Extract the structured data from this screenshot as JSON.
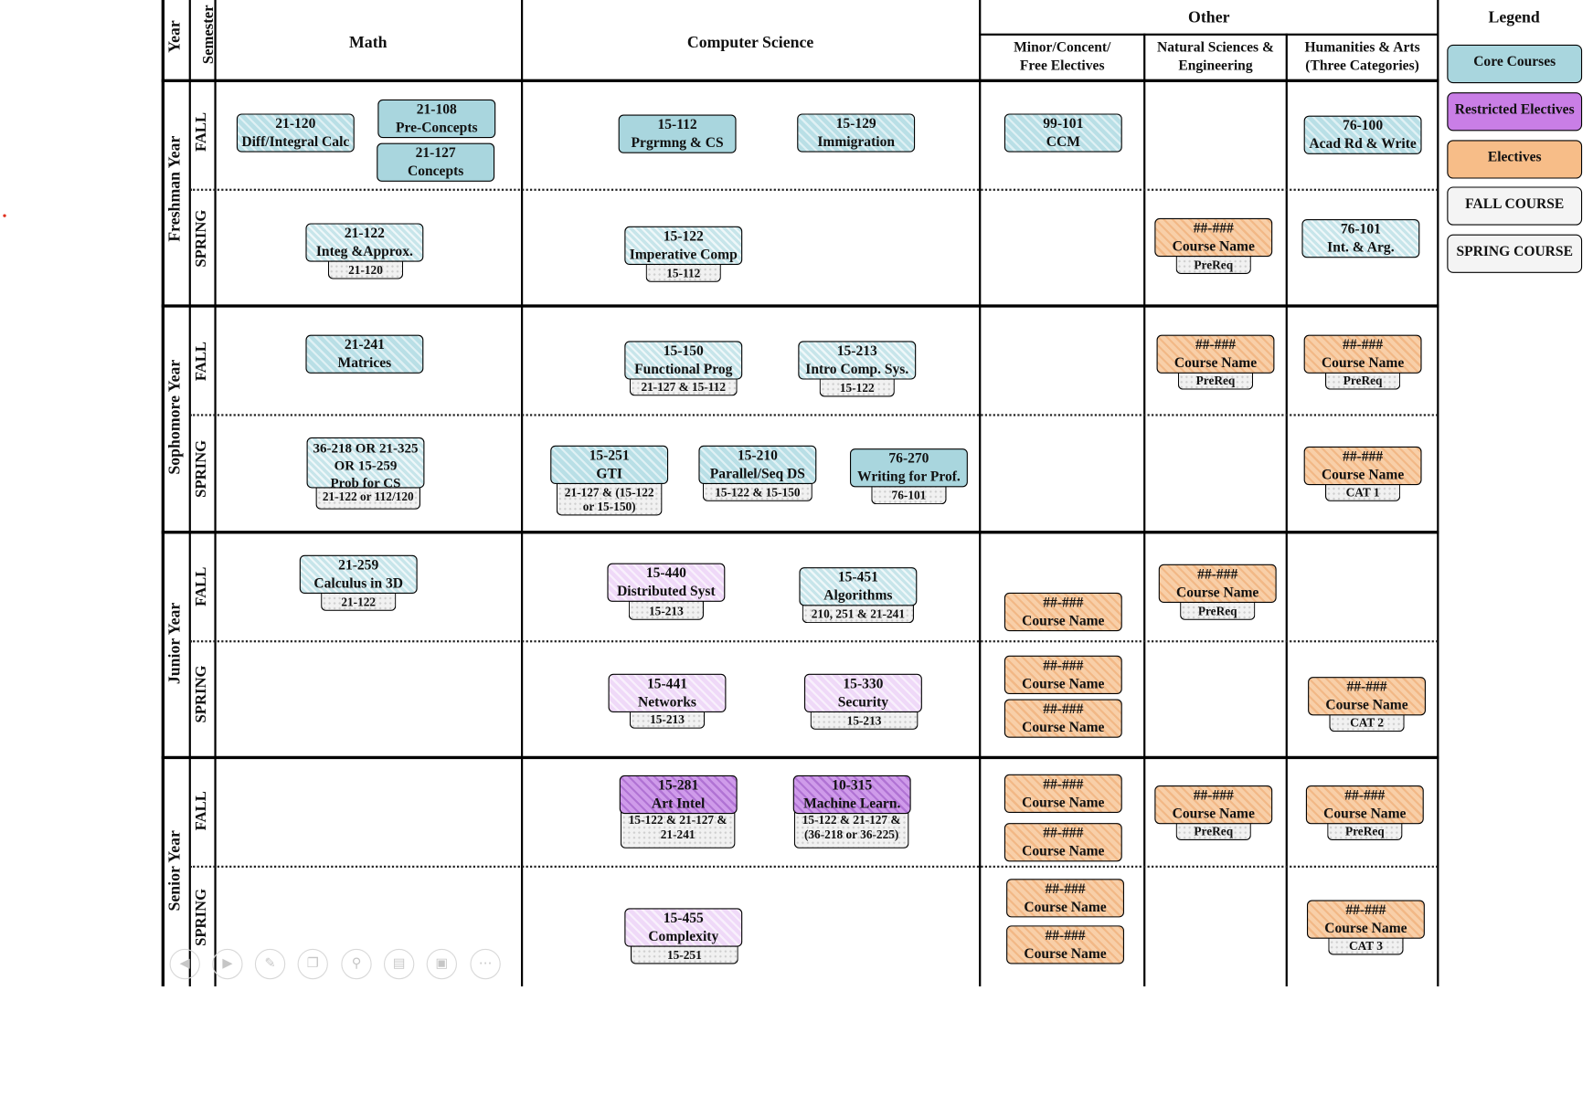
{
  "headers": {
    "year": "Year",
    "semester": "Semester",
    "math": "Math",
    "cs": "Computer Science",
    "other": "Other",
    "minor": "Minor/Concent/ Free Electives",
    "natsci": "Natural Sciences & Engineering",
    "hum": "Humanities & Arts (Three Categories)",
    "legend": "Legend"
  },
  "years": [
    "Freshman Year",
    "Sophomore Year",
    "Junior Year",
    "Senior Year"
  ],
  "semesters": {
    "fall": "FALL",
    "spring": "SPRING"
  },
  "courses": [
    {
      "code": "21-120",
      "name": "Diff/Integral Calc",
      "kind": "core"
    },
    {
      "code": "21-108",
      "name": "Pre-Concepts",
      "kind": "core-solid"
    },
    {
      "code": "21-127",
      "name": "Concepts",
      "kind": "core-solid"
    },
    {
      "code": "15-112",
      "name": "Prgrmng & CS",
      "kind": "core-solid"
    },
    {
      "code": "15-129",
      "name": "Immigration",
      "kind": "core"
    },
    {
      "code": "99-101",
      "name": "CCM",
      "kind": "core"
    },
    {
      "code": "76-100",
      "name": "Acad Rd & Write",
      "kind": "core"
    },
    {
      "code": "21-122",
      "name": "Integ &Approx.",
      "kind": "core-s",
      "prereq": "21-120"
    },
    {
      "code": "15-122",
      "name": "Imperative Comp",
      "kind": "core-s",
      "prereq": "15-112"
    },
    {
      "code": "##-###",
      "name": "Course Name",
      "kind": "elec",
      "prereq": "PreReq"
    },
    {
      "code": "76-101",
      "name": "Int. & Arg.",
      "kind": "core-s"
    },
    {
      "code": "21-241",
      "name": "Matrices",
      "kind": "core"
    },
    {
      "code": "15-150",
      "name": "Functional Prog",
      "kind": "core-s",
      "prereq": "21-127 & 15-112"
    },
    {
      "code": "15-213",
      "name": "Intro Comp. Sys.",
      "kind": "core-s",
      "prereq": "15-122"
    },
    {
      "code": "##-###",
      "name": "Course Name",
      "kind": "elec",
      "prereq": "PreReq"
    },
    {
      "code": "##-###",
      "name": "Course Name",
      "kind": "elec",
      "prereq": "PreReq"
    },
    {
      "code": "36-218 OR 21-325 OR 15-259",
      "name": "Prob for CS",
      "kind": "core-s",
      "prereq": "21-122 or 112/120"
    },
    {
      "code": "15-251",
      "name": "GTI",
      "kind": "core",
      "prereq": "21-127 & (15-122 or 15-150)"
    },
    {
      "code": "15-210",
      "name": "Parallel/Seq DS",
      "kind": "core",
      "prereq": "15-122 & 15-150"
    },
    {
      "code": "76-270",
      "name": "Writing for Prof.",
      "kind": "core-solid",
      "prereq": "76-101"
    },
    {
      "code": "##-###",
      "name": "Course Name",
      "kind": "elec",
      "prereq": "CAT 1"
    },
    {
      "code": "21-259",
      "name": "Calculus in 3D",
      "kind": "core-s",
      "prereq": "21-122"
    },
    {
      "code": "15-440",
      "name": "Distributed Syst",
      "kind": "restr-light",
      "prereq": "15-213"
    },
    {
      "code": "15-451",
      "name": "Algorithms",
      "kind": "core-s",
      "prereq": "210, 251 & 21-241"
    },
    {
      "code": "##-###",
      "name": "Course Name",
      "kind": "elec"
    },
    {
      "code": "##-###",
      "name": "Course Name",
      "kind": "elec",
      "prereq": "PreReq"
    },
    {
      "code": "15-441",
      "name": "Networks",
      "kind": "restr-light",
      "prereq": "15-213"
    },
    {
      "code": "15-330",
      "name": "Security",
      "kind": "restr-light",
      "prereq": "15-213"
    },
    {
      "code": "##-###",
      "name": "Course Name",
      "kind": "elec"
    },
    {
      "code": "##-###",
      "name": "Course Name",
      "kind": "elec"
    },
    {
      "code": "##-###",
      "name": "Course Name",
      "kind": "elec",
      "prereq": "CAT 2"
    },
    {
      "code": "15-281",
      "name": "Art Intel",
      "kind": "restr",
      "prereq": "15-122 & 21-127 & 21-241"
    },
    {
      "code": "10-315",
      "name": "Machine Learn.",
      "kind": "restr",
      "prereq": "15-122 & 21-127 & (36-218 or 36-225)"
    },
    {
      "code": "##-###",
      "name": "Course Name",
      "kind": "elec"
    },
    {
      "code": "##-###",
      "name": "Course Name",
      "kind": "elec"
    },
    {
      "code": "##-###",
      "name": "Course Name",
      "kind": "elec",
      "prereq": "PreReq"
    },
    {
      "code": "##-###",
      "name": "Course Name",
      "kind": "elec",
      "prereq": "PreReq"
    },
    {
      "code": "15-455",
      "name": "Complexity",
      "kind": "restr-light",
      "prereq": "15-251"
    },
    {
      "code": "##-###",
      "name": "Course Name",
      "kind": "elec"
    },
    {
      "code": "##-###",
      "name": "Course Name",
      "kind": "elec"
    },
    {
      "code": "##-###",
      "name": "Course Name",
      "kind": "elec",
      "prereq": "CAT 3"
    }
  ],
  "legend": [
    {
      "label": "Core Courses",
      "color": "#a9d6de"
    },
    {
      "label": "Restricted Electives",
      "color": "#c97ee6"
    },
    {
      "label": "Electives",
      "color": "#f7bd88"
    },
    {
      "label": "FALL COURSE",
      "color": "#f4f4f4"
    },
    {
      "label": "SPRING COURSE",
      "color": "#f4f4f4"
    }
  ],
  "toolbar": [
    "prev-icon",
    "next-icon",
    "pen-icon",
    "copy-icon",
    "zoom-icon",
    "subtitle-icon",
    "camera-off-icon",
    "more-icon"
  ]
}
